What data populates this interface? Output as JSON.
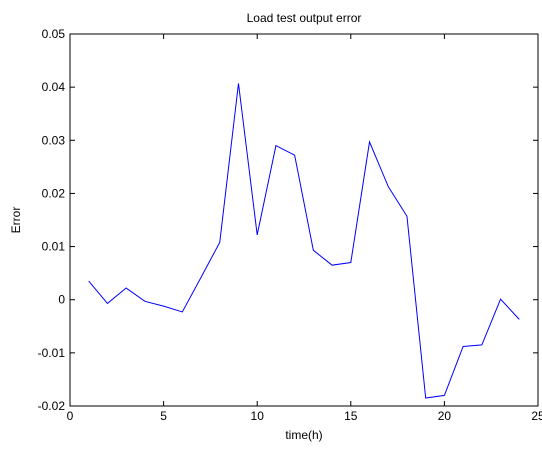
{
  "chart_data": {
    "type": "line",
    "title": "Load test output error",
    "xlabel": "time(h)",
    "ylabel": "Error",
    "xlim": [
      0,
      25
    ],
    "ylim": [
      -0.02,
      0.05
    ],
    "xticks": [
      0,
      5,
      10,
      15,
      20,
      25
    ],
    "yticks": [
      -0.02,
      -0.01,
      0,
      0.01,
      0.02,
      0.03,
      0.04,
      0.05
    ],
    "xtick_labels": [
      "0",
      "5",
      "10",
      "15",
      "20",
      "25"
    ],
    "ytick_labels": [
      "-0.02",
      "-0.01",
      "0",
      "0.01",
      "0.02",
      "0.03",
      "0.04",
      "0.05"
    ],
    "grid": false,
    "line_color": "#0000ff",
    "series": [
      {
        "x": [
          1,
          2,
          3,
          4,
          5,
          6,
          7,
          8,
          9,
          10,
          11,
          12,
          13,
          14,
          15,
          16,
          17,
          18,
          19,
          20,
          21,
          22,
          23,
          24
        ],
        "values": [
          0.0035,
          -0.0007,
          0.0022,
          -0.0003,
          -0.0012,
          -0.0023,
          0.0042,
          0.0108,
          0.0407,
          0.0122,
          0.029,
          0.0272,
          0.0093,
          0.0065,
          0.007,
          0.0297,
          0.0213,
          0.0157,
          -0.0185,
          -0.018,
          -0.0088,
          -0.0085,
          0.0001,
          -0.0037
        ]
      }
    ]
  }
}
